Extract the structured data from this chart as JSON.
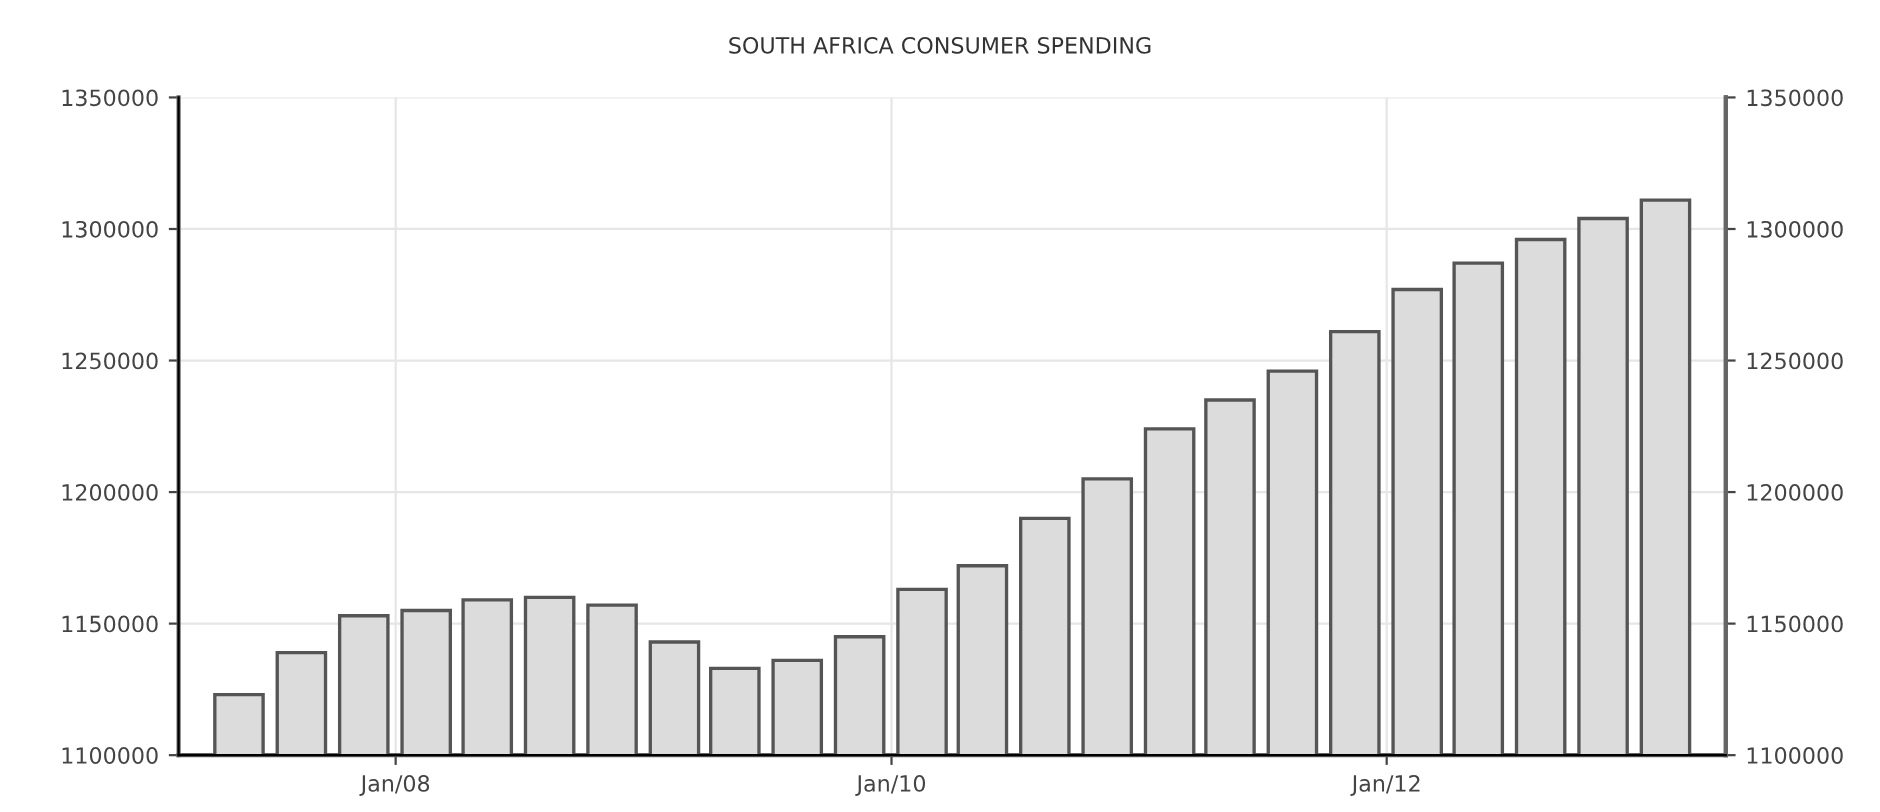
{
  "chart_data": {
    "type": "bar",
    "title": "SOUTH AFRICA CONSUMER SPENDING",
    "x": [
      "2007-05-15",
      "2007-08-15",
      "2007-11-15",
      "2008-02-15",
      "2008-05-15",
      "2008-08-15",
      "2008-11-15",
      "2009-02-15",
      "2009-05-15",
      "2009-08-15",
      "2009-11-15",
      "2010-02-15",
      "2010-05-15",
      "2010-08-15",
      "2010-11-15",
      "2011-02-15",
      "2011-05-15",
      "2011-08-15",
      "2011-11-15",
      "2012-02-15",
      "2012-05-15",
      "2012-08-15",
      "2012-11-15",
      "2013-02-15"
    ],
    "series": [
      {
        "color": "#dcdcdc",
        "values": [
          1123000,
          1139000,
          1153000,
          1155000,
          1159000,
          1160000,
          1157000,
          1143000,
          1133000,
          1136000,
          1145000,
          1163000,
          1172000,
          1190000,
          1205000,
          1224000,
          1235000,
          1246000,
          1261000,
          1277000,
          1287000,
          1296000,
          1304000,
          1311000
        ]
      }
    ],
    "xlim": [
      "2007-02-15",
      "2013-05-15"
    ],
    "xticks": [
      {
        "value": "2008-01-01",
        "label": "Jan/08"
      },
      {
        "value": "2010-01-01",
        "label": "Jan/10"
      },
      {
        "value": "2012-01-01",
        "label": "Jan/12"
      }
    ],
    "ylim": [
      1100000,
      1350000
    ],
    "yticks": [
      1100000,
      1150000,
      1200000,
      1250000,
      1300000,
      1350000
    ],
    "y2lim": [
      1100000,
      1350000
    ],
    "y2ticks": [
      1100000,
      1150000,
      1200000,
      1250000,
      1300000,
      1350000
    ],
    "grid": true
  }
}
